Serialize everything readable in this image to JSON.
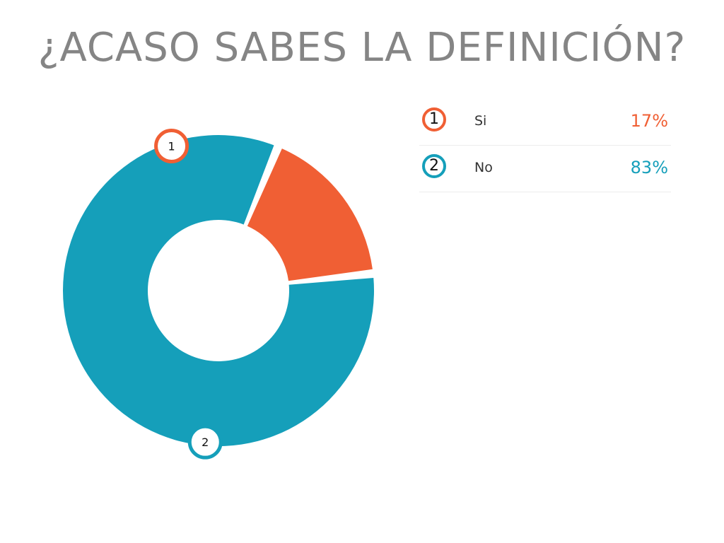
{
  "title": "¿ACASO SABES LA DEFINICIÓN?",
  "chart_data": {
    "type": "pie",
    "variant": "donut",
    "title": "¿ACASO SABES LA DEFINICIÓN?",
    "categories": [
      "Si",
      "No"
    ],
    "values": [
      17,
      83
    ],
    "unit": "%",
    "markers": [
      "1",
      "2"
    ],
    "colors": [
      "#f05f34",
      "#159fba"
    ],
    "legend_position": "right"
  },
  "legend": [
    {
      "marker": "1",
      "label": "Si",
      "percent": "17%",
      "color": "#f05f34"
    },
    {
      "marker": "2",
      "label": "No",
      "percent": "83%",
      "color": "#159fba"
    }
  ]
}
